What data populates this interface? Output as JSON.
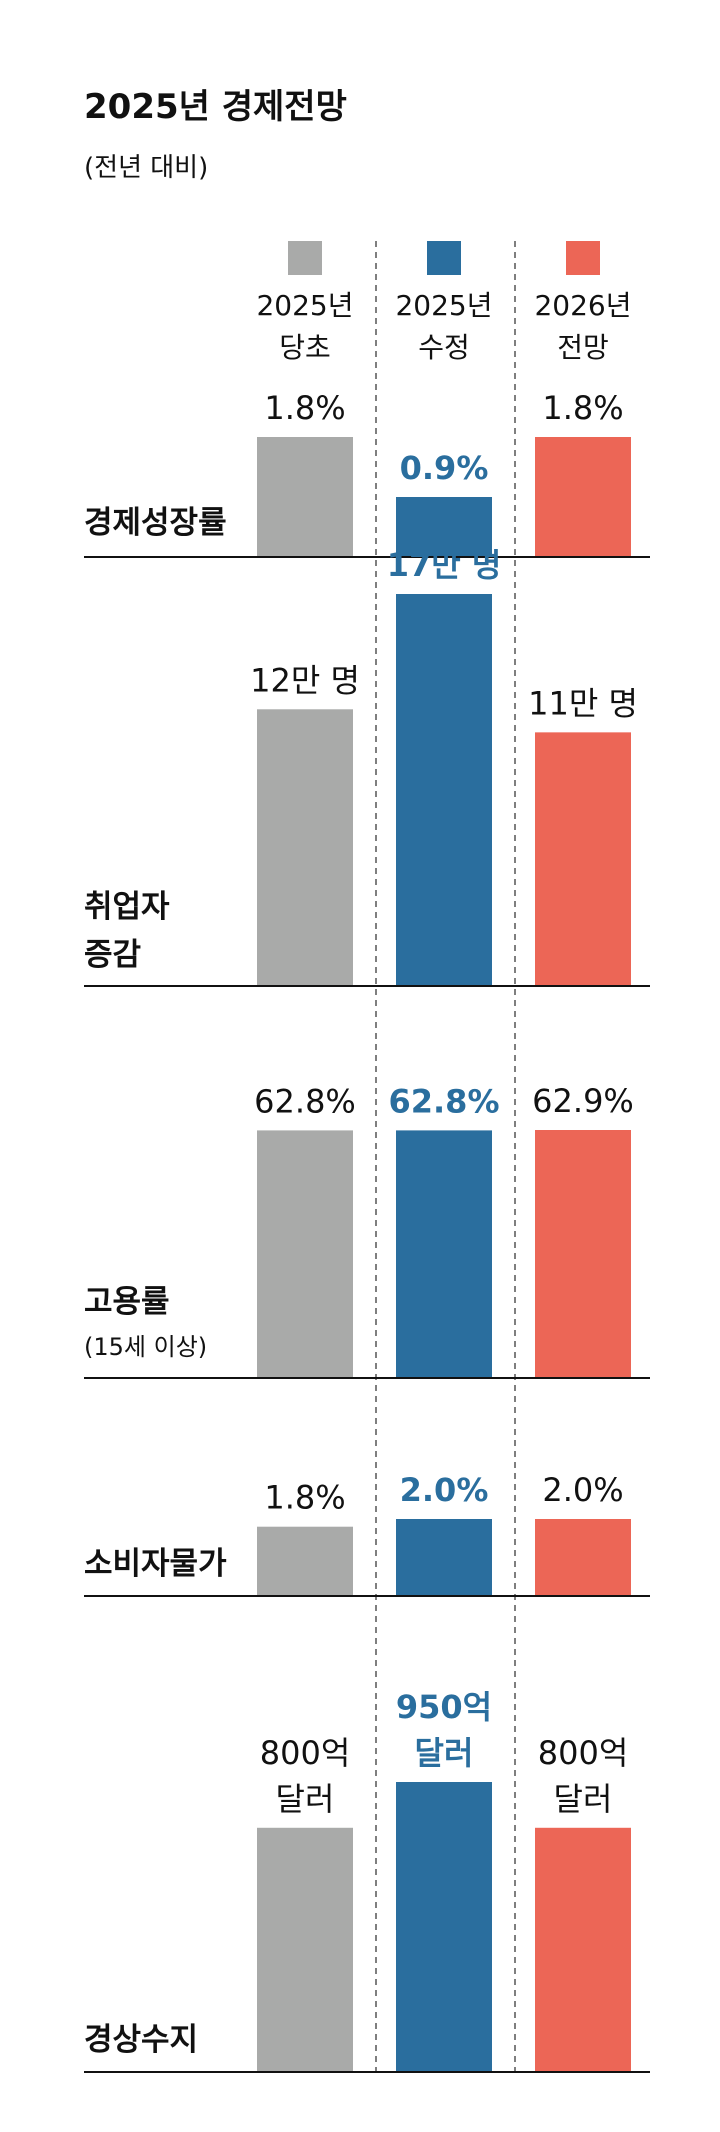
{
  "title": "2025년 경제전망",
  "subtitle": "(전년 대비)",
  "chart_data": {
    "type": "bar",
    "series": [
      {
        "name": "2025년 당초",
        "label_lines": [
          "2025년",
          "당초"
        ],
        "color": "#A9AAA9"
      },
      {
        "name": "2025년 수정",
        "label_lines": [
          "2025년",
          "수정"
        ],
        "color": "#2A6E9E"
      },
      {
        "name": "2026년 전망",
        "label_lines": [
          "2026년",
          "전망"
        ],
        "color": "#EC6656"
      }
    ],
    "highlight_series": 1,
    "metrics": [
      {
        "label_lines": [
          "경제성장률"
        ],
        "sublabel": "",
        "values": [
          1.8,
          0.9,
          1.8
        ],
        "value_labels": [
          [
            "1.8%"
          ],
          [
            "0.9%"
          ],
          [
            "1.8%"
          ]
        ]
      },
      {
        "label_lines": [
          "취업자",
          "증감"
        ],
        "sublabel": "",
        "values": [
          12,
          17,
          11
        ],
        "value_labels": [
          [
            "12만 명"
          ],
          [
            "17만 명"
          ],
          [
            "11만 명"
          ]
        ]
      },
      {
        "label_lines": [
          "고용률"
        ],
        "sublabel": "(15세 이상)",
        "values": [
          62.8,
          62.8,
          62.9
        ],
        "value_labels": [
          [
            "62.8%"
          ],
          [
            "62.8%"
          ],
          [
            "62.9%"
          ]
        ]
      },
      {
        "label_lines": [
          "소비자물가"
        ],
        "sublabel": "",
        "values": [
          1.8,
          2.0,
          2.0
        ],
        "value_labels": [
          [
            "1.8%"
          ],
          [
            "2.0%"
          ],
          [
            "2.0%"
          ]
        ]
      },
      {
        "label_lines": [
          "경상수지"
        ],
        "sublabel": "",
        "values": [
          800,
          950,
          800
        ],
        "value_labels": [
          [
            "800억",
            "달러"
          ],
          [
            "950억",
            "달러"
          ],
          [
            "800억",
            "달러"
          ]
        ]
      }
    ]
  }
}
